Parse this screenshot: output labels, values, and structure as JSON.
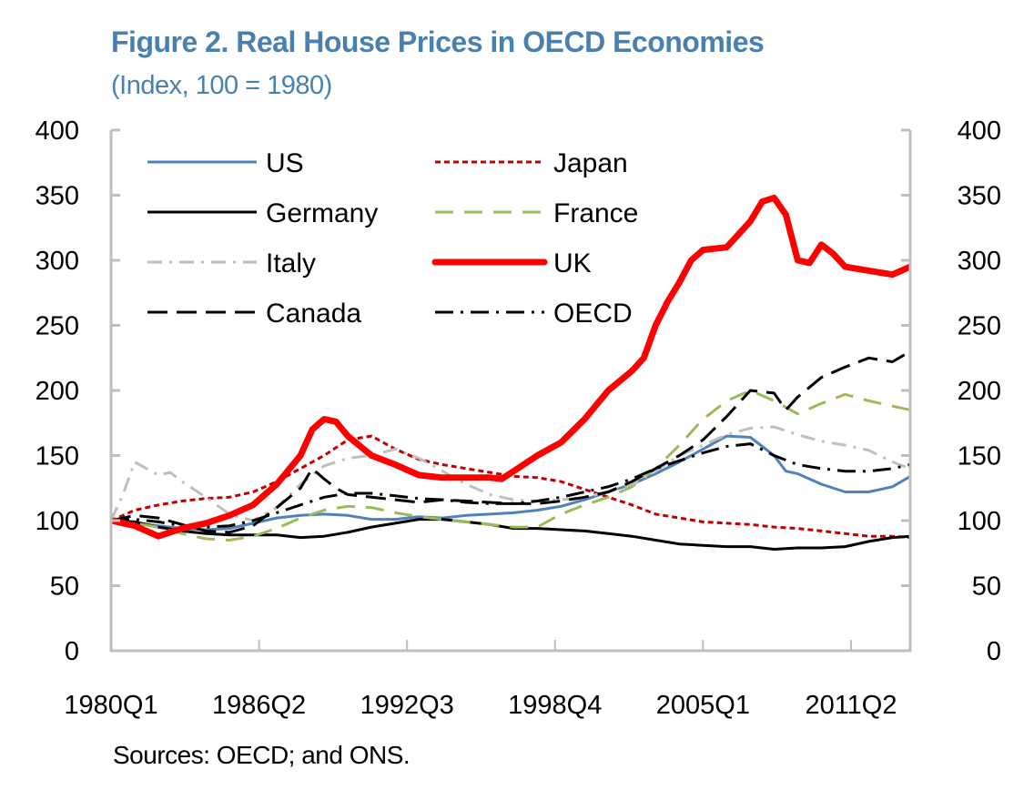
{
  "header": {
    "title": "Figure 2. Real House Prices in OECD Economies",
    "subtitle": "(Index, 100 = 1980)"
  },
  "footer": {
    "source": "Sources: OECD; and ONS."
  },
  "colors": {
    "title": "#4a80b0",
    "axis": "#bfbfbf"
  },
  "chart_data": {
    "type": "line",
    "title": "Figure 2. Real House Prices in OECD Economies",
    "subtitle": "(Index, 100 = 1980)",
    "xlabel": "",
    "ylabel": "",
    "ylim": [
      0,
      400
    ],
    "xlim": [
      1980.0,
      2013.75
    ],
    "yticks": [
      0,
      50,
      100,
      150,
      200,
      250,
      300,
      350,
      400
    ],
    "xticks": [
      {
        "label": "1980Q1",
        "value": 1980.0
      },
      {
        "label": "1986Q2",
        "value": 1986.25
      },
      {
        "label": "1992Q3",
        "value": 1992.5
      },
      {
        "label": "1998Q4",
        "value": 1998.75
      },
      {
        "label": "2005Q1",
        "value": 2005.0
      },
      {
        "label": "2011Q2",
        "value": 2011.25
      }
    ],
    "secondary_y_axis": true,
    "grid": false,
    "legend_position": "top-left",
    "series": [
      {
        "name": "US",
        "color": "#4f81bd",
        "style": "solid",
        "width": 3,
        "x": [
          1980,
          1981,
          1982,
          1983,
          1984,
          1985,
          1986,
          1987,
          1988,
          1989,
          1990,
          1991,
          1992,
          1993,
          1994,
          1995,
          1996,
          1997,
          1998,
          1999,
          2000,
          2001,
          2002,
          2003,
          2004,
          2005,
          2006,
          2007,
          2008,
          2008.5,
          2009,
          2010,
          2011,
          2012,
          2013,
          2013.75
        ],
        "y": [
          100,
          98,
          96,
          94,
          93,
          94,
          98,
          102,
          104,
          105,
          104,
          101,
          101,
          103,
          102,
          104,
          105,
          106,
          108,
          111,
          116,
          122,
          128,
          136,
          145,
          155,
          165,
          164,
          150,
          138,
          136,
          128,
          122,
          122,
          126,
          134
        ]
      },
      {
        "name": "Japan",
        "color": "#c00000",
        "style": "dotted",
        "width": 3,
        "x": [
          1980,
          1981,
          1982,
          1983,
          1984,
          1985,
          1986,
          1987,
          1988,
          1989,
          1990,
          1991,
          1992,
          1993,
          1994,
          1995,
          1996,
          1997,
          1998,
          1999,
          2000,
          2001,
          2002,
          2003,
          2004,
          2005,
          2006,
          2007,
          2008,
          2009,
          2010,
          2011,
          2012,
          2013,
          2013.75
        ],
        "y": [
          100,
          108,
          112,
          115,
          117,
          118,
          122,
          130,
          140,
          150,
          162,
          165,
          155,
          147,
          143,
          140,
          137,
          134,
          133,
          130,
          124,
          118,
          112,
          105,
          102,
          99,
          98,
          97,
          95,
          94,
          92,
          90,
          88,
          88,
          87
        ]
      },
      {
        "name": "Germany",
        "color": "#000000",
        "style": "solid",
        "width": 3,
        "x": [
          1980,
          1981,
          1982,
          1983,
          1984,
          1985,
          1986,
          1987,
          1988,
          1989,
          1990,
          1991,
          1992,
          1993,
          1994,
          1995,
          1996,
          1997,
          1998,
          1999,
          2000,
          2001,
          2002,
          2003,
          2004,
          2005,
          2006,
          2007,
          2008,
          2009,
          2010,
          2011,
          2012,
          2013,
          2013.75
        ],
        "y": [
          100,
          99,
          95,
          92,
          90,
          89,
          89,
          89,
          87,
          88,
          91,
          95,
          98,
          101,
          101,
          99,
          97,
          94,
          94,
          93,
          92,
          90,
          88,
          85,
          82,
          81,
          80,
          80,
          78,
          79,
          79,
          80,
          84,
          87,
          88
        ]
      },
      {
        "name": "France",
        "color": "#9bbb59",
        "style": "dashed",
        "width": 3,
        "x": [
          1980,
          1981,
          1982,
          1983,
          1984,
          1985,
          1986,
          1987,
          1988,
          1989,
          1990,
          1991,
          1992,
          1993,
          1994,
          1995,
          1996,
          1997,
          1998,
          1999,
          2000,
          2001,
          2002,
          2003,
          2004,
          2005,
          2006,
          2007,
          2008,
          2009,
          2010,
          2011,
          2012,
          2013,
          2013.75
        ],
        "y": [
          100,
          98,
          95,
          90,
          86,
          85,
          88,
          94,
          102,
          108,
          111,
          110,
          106,
          103,
          101,
          99,
          97,
          95,
          95,
          105,
          112,
          118,
          126,
          140,
          158,
          178,
          192,
          200,
          192,
          182,
          190,
          197,
          192,
          188,
          185
        ]
      },
      {
        "name": "Italy",
        "color": "#bfbfbf",
        "style": "dashdot",
        "width": 3,
        "x": [
          1980,
          1980.5,
          1981,
          1981.5,
          1982,
          1982.5,
          1983,
          1984,
          1985,
          1986,
          1987,
          1988,
          1989,
          1990,
          1991,
          1992,
          1993,
          1994,
          1995,
          1996,
          1997,
          1998,
          1999,
          2000,
          2001,
          2002,
          2003,
          2004,
          2005,
          2006,
          2007,
          2008,
          2009,
          2010,
          2011,
          2012,
          2013,
          2013.75
        ],
        "y": [
          100,
          120,
          145,
          140,
          135,
          137,
          130,
          118,
          105,
          100,
          110,
          128,
          142,
          148,
          150,
          155,
          148,
          138,
          128,
          120,
          116,
          115,
          116,
          118,
          122,
          128,
          138,
          150,
          158,
          166,
          171,
          172,
          166,
          161,
          158,
          154,
          145,
          140
        ]
      },
      {
        "name": "UK",
        "color": "#ff0000",
        "style": "solid",
        "width": 7,
        "x": [
          1980,
          1981,
          1982,
          1983,
          1984,
          1985,
          1986,
          1987,
          1988,
          1988.5,
          1989,
          1989.5,
          1990,
          1991,
          1992,
          1993,
          1994,
          1995,
          1996,
          1996.5,
          1997,
          1998,
          1999,
          2000,
          2001,
          2002,
          2002.5,
          2003,
          2003.5,
          2004,
          2004.5,
          2005,
          2006,
          2007,
          2007.5,
          2008,
          2008.5,
          2009,
          2009.5,
          2010,
          2010.5,
          2011,
          2012,
          2013,
          2013.75
        ],
        "y": [
          100,
          96,
          88,
          94,
          98,
          104,
          112,
          128,
          150,
          170,
          178,
          176,
          165,
          150,
          143,
          135,
          133,
          133,
          133,
          132,
          138,
          150,
          160,
          178,
          200,
          215,
          225,
          250,
          268,
          283,
          300,
          308,
          310,
          330,
          345,
          348,
          335,
          300,
          298,
          312,
          305,
          295,
          292,
          289,
          295
        ]
      },
      {
        "name": "Canada",
        "color": "#000000",
        "style": "longdash",
        "width": 3,
        "x": [
          1980,
          1981,
          1982,
          1983,
          1984,
          1985,
          1986,
          1987,
          1988,
          1988.5,
          1989,
          1989.5,
          1990,
          1991,
          1992,
          1993,
          1994,
          1995,
          1996,
          1997,
          1998,
          1999,
          2000,
          2001,
          2002,
          2003,
          2004,
          2005,
          2006,
          2007,
          2008,
          2008.5,
          2009,
          2010,
          2011,
          2012,
          2013,
          2013.75
        ],
        "y": [
          100,
          104,
          102,
          97,
          92,
          91,
          96,
          110,
          125,
          140,
          132,
          125,
          120,
          118,
          116,
          114,
          116,
          115,
          114,
          113,
          113,
          115,
          118,
          122,
          130,
          140,
          150,
          162,
          180,
          200,
          198,
          185,
          195,
          210,
          218,
          225,
          222,
          230
        ]
      },
      {
        "name": "OECD",
        "color": "#000000",
        "style": "dashdotlong",
        "width": 3,
        "x": [
          1980,
          1981,
          1982,
          1983,
          1984,
          1985,
          1986,
          1987,
          1988,
          1989,
          1990,
          1991,
          1992,
          1993,
          1994,
          1995,
          1996,
          1997,
          1998,
          1999,
          2000,
          2001,
          2002,
          2003,
          2004,
          2005,
          2006,
          2007,
          2008,
          2009,
          2010,
          2011,
          2012,
          2013,
          2013.75
        ],
        "y": [
          100,
          101,
          99,
          96,
          95,
          96,
          100,
          106,
          112,
          118,
          121,
          121,
          119,
          117,
          116,
          114,
          113,
          113,
          115,
          118,
          122,
          126,
          132,
          140,
          146,
          152,
          157,
          159,
          150,
          143,
          140,
          138,
          138,
          140,
          143
        ]
      }
    ]
  }
}
